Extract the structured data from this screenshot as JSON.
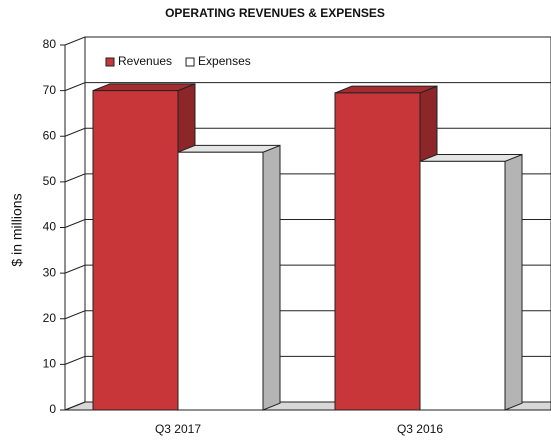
{
  "chart_data": {
    "type": "bar",
    "title": "OPERATING REVENUES & EXPENSES",
    "y_label": "$ in millions",
    "categories": [
      "Q3 2017",
      "Q3 2016"
    ],
    "series": [
      {
        "name": "Revenues",
        "color": "#c8363a",
        "values": [
          70,
          69.5
        ]
      },
      {
        "name": "Expenses",
        "color": "#ffffff",
        "values": [
          56.5,
          54.5
        ]
      }
    ],
    "ylim": [
      0,
      80
    ],
    "yticks": [
      0,
      10,
      20,
      30,
      40,
      50,
      60,
      70,
      80
    ],
    "grid": true,
    "legend": "top-left"
  }
}
